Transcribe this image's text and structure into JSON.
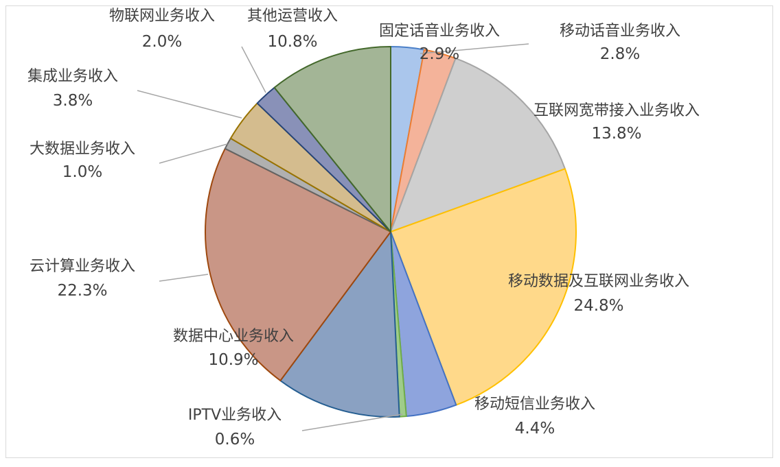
{
  "chart_data": {
    "type": "pie",
    "title": "",
    "slices": [
      {
        "label": "固定话音业务收入",
        "value": 2.9,
        "display": "2.9%",
        "color": "#aac6ec",
        "stroke": "#4a7fc8"
      },
      {
        "label": "移动话音业务收入",
        "value": 2.8,
        "display": "2.8%",
        "color": "#f4b39a",
        "stroke": "#ed7d31"
      },
      {
        "label": "互联网宽带接入业务收入",
        "value": 13.8,
        "display": "13.8%",
        "color": "#cfcfcf",
        "stroke": "#a5a5a5"
      },
      {
        "label": "移动数据及互联网业务收入",
        "value": 24.8,
        "display": "24.8%",
        "color": "#ffd98a",
        "stroke": "#ffc000"
      },
      {
        "label": "移动短信业务收入",
        "value": 4.4,
        "display": "4.4%",
        "color": "#8ea4dd",
        "stroke": "#4472c4"
      },
      {
        "label": "IPTV业务收入",
        "value": 0.6,
        "display": "0.6%",
        "color": "#9fcc8a",
        "stroke": "#70ad47"
      },
      {
        "label": "数据中心业务收入",
        "value": 10.9,
        "display": "10.9%",
        "color": "#8aa1c2",
        "stroke": "#255e91"
      },
      {
        "label": "云计算业务收入",
        "value": 22.3,
        "display": "22.3%",
        "color": "#c99686",
        "stroke": "#9e480e"
      },
      {
        "label": "大数据业务收入",
        "value": 1.0,
        "display": "1.0%",
        "color": "#b0b0b0",
        "stroke": "#636363"
      },
      {
        "label": "集成业务收入",
        "value": 3.8,
        "display": "3.8%",
        "color": "#d4bc8e",
        "stroke": "#997300"
      },
      {
        "label": "物联网业务收入",
        "value": 2.0,
        "display": "2.0%",
        "color": "#8991b8",
        "stroke": "#264478"
      },
      {
        "label": "其他运营收入",
        "value": 10.8,
        "display": "10.8%",
        "color": "#a3b596",
        "stroke": "#43682b"
      }
    ]
  }
}
